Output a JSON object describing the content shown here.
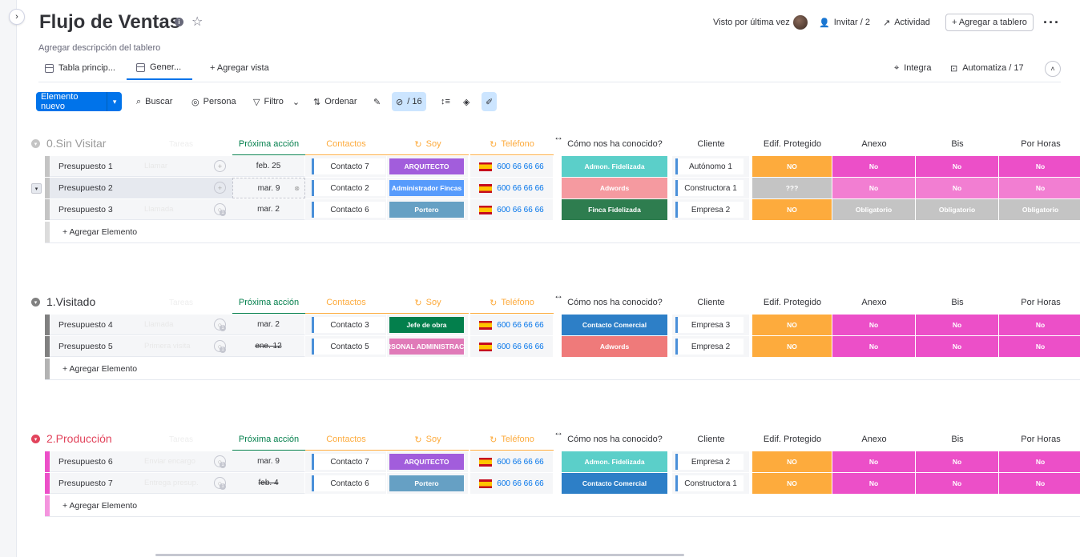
{
  "board": {
    "title": "Flujo de Ventas",
    "description": "Agregar descripción del tablero",
    "seen_label": "Visto por última vez",
    "invite_label": "Invitar / 2",
    "activity_label": "Actividad",
    "add_board_label": "+ Agregar a tablero"
  },
  "tabs": {
    "main": "Tabla princip...",
    "general": "Gener...",
    "add_view": "+ Agregar vista",
    "integrate": "Integra",
    "automate": "Automatiza / 17"
  },
  "toolbar": {
    "new_item": "Elemento nuevo",
    "search": "Buscar",
    "person": "Persona",
    "filter": "Filtro",
    "sort": "Ordenar",
    "hidden": "/ 16"
  },
  "columns": {
    "next_action": "Próxima acción",
    "contacts": "Contactos",
    "soy": "Soy",
    "phone": "Teléfono",
    "how_known": "Cómo nos ha conocido?",
    "client": "Cliente",
    "protected": "Edif. Protegido",
    "annex": "Anexo",
    "bis": "Bis",
    "hours": "Por Horas",
    "tasks_ghost": "Tareas"
  },
  "add_item_label": "+ Agregar Elemento",
  "colors": {
    "accent": "#0073ea",
    "group0": "#c4c4c4",
    "group1": "#808080",
    "group2": "#e2445c",
    "orange": "#fdab3d",
    "pink": "#ec4fc8",
    "gray": "#c4c4c4"
  },
  "groups": [
    {
      "title": "0.Sin Visitar",
      "rows": [
        {
          "name": "Presupuesto 1",
          "ghost": "Llamar",
          "date": "feb. 25",
          "contact": "Contacto 7",
          "soy": "ARQUITECTO",
          "phone": "600 66 66 66",
          "how": "Admon. Fidelizada",
          "client": "Autónomo 1",
          "prot": "NO",
          "anexo": "No",
          "bis": "No",
          "horas": "No"
        },
        {
          "name": "Presupuesto 2",
          "ghost": "",
          "date": "mar. 9",
          "contact": "Contacto 2",
          "soy": "Administrador Fincas",
          "phone": "600 66 66 66",
          "how": "Adwords",
          "client": "Constructora 1",
          "prot": "???",
          "anexo": "No",
          "bis": "No",
          "horas": "No"
        },
        {
          "name": "Presupuesto 3",
          "ghost": "Llamada",
          "date": "mar. 2",
          "contact": "Contacto 6",
          "soy": "Portero",
          "phone": "600 66 66 66",
          "how": "Finca Fidelizada",
          "client": "Empresa 2",
          "prot": "NO",
          "anexo": "Obligatorio",
          "bis": "Obligatorio",
          "horas": "Obligatorio"
        }
      ]
    },
    {
      "title": "1.Visitado",
      "rows": [
        {
          "name": "Presupuesto 4",
          "ghost": "Llamada",
          "date": "mar. 2",
          "contact": "Contacto 3",
          "soy": "Jefe de obra",
          "phone": "600 66 66 66",
          "how": "Contacto Comercial",
          "client": "Empresa 3",
          "prot": "NO",
          "anexo": "No",
          "bis": "No",
          "horas": "No"
        },
        {
          "name": "Presupuesto 5",
          "ghost": "Primera visita",
          "date": "ene. 12",
          "contact": "Contacto 5",
          "soy": "PERSONAL ADMINISTRACIÓN",
          "phone": "600 66 66 66",
          "how": "Adwords",
          "client": "Empresa 2",
          "prot": "NO",
          "anexo": "No",
          "bis": "No",
          "horas": "No"
        }
      ]
    },
    {
      "title": "2.Producción",
      "rows": [
        {
          "name": "Presupuesto 6",
          "ghost": "Enviar encargo",
          "date": "mar. 9",
          "contact": "Contacto 7",
          "soy": "ARQUITECTO",
          "phone": "600 66 66 66",
          "how": "Admon. Fidelizada",
          "client": "Empresa 2",
          "prot": "NO",
          "anexo": "No",
          "bis": "No",
          "horas": "No"
        },
        {
          "name": "Presupuesto 7",
          "ghost": "Entrega presup.",
          "date": "feb. 4",
          "contact": "Contacto 6",
          "soy": "Portero",
          "phone": "600 66 66 66",
          "how": "Contacto Comercial",
          "client": "Constructora 1",
          "prot": "NO",
          "anexo": "No",
          "bis": "No",
          "horas": "No"
        }
      ]
    }
  ]
}
